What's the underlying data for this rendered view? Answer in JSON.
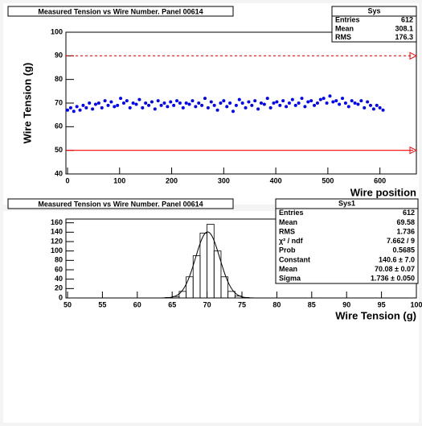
{
  "chart_data": [
    {
      "type": "scatter",
      "title": "Measured Tension vs Wire Number. Panel 00614",
      "x_label": "Wire position",
      "y_label": "Wire Tension (g)",
      "color": "#0000ff",
      "xlim": [
        0,
        670
      ],
      "ylim": [
        40,
        100
      ],
      "xticks": [
        0,
        100,
        200,
        300,
        400,
        500,
        600
      ],
      "yticks": [
        40,
        50,
        60,
        70,
        80,
        90,
        100
      ],
      "reference_lines": [
        {
          "value": 90,
          "style": "dashed",
          "color": "#ff0000"
        },
        {
          "value": 50,
          "style": "solid",
          "color": "#ff0000"
        }
      ],
      "stats": {
        "name": "Sys",
        "rows": [
          [
            "Entries",
            "612"
          ],
          [
            "Mean",
            "308.1"
          ],
          [
            "RMS",
            "176.3"
          ]
        ]
      },
      "x": [
        0,
        6,
        12,
        18,
        24,
        30,
        36,
        42,
        48,
        54,
        60,
        66,
        72,
        78,
        84,
        90,
        96,
        102,
        108,
        114,
        120,
        126,
        132,
        138,
        144,
        150,
        156,
        162,
        168,
        174,
        180,
        186,
        192,
        198,
        204,
        210,
        216,
        222,
        228,
        234,
        240,
        246,
        252,
        258,
        264,
        270,
        276,
        282,
        288,
        294,
        300,
        306,
        312,
        318,
        324,
        330,
        336,
        342,
        348,
        354,
        360,
        366,
        372,
        378,
        384,
        390,
        396,
        402,
        408,
        414,
        420,
        426,
        432,
        438,
        444,
        450,
        456,
        462,
        468,
        474,
        480,
        486,
        492,
        498,
        504,
        510,
        516,
        522,
        528,
        534,
        540,
        546,
        552,
        558,
        564,
        570,
        576,
        582,
        588,
        594,
        600,
        606
      ],
      "y": [
        67,
        68,
        66.5,
        68.5,
        67,
        69,
        68,
        70,
        67.5,
        69.5,
        70,
        68,
        71,
        69,
        70.5,
        68.5,
        69,
        72,
        70,
        71,
        68,
        70,
        69.5,
        71.5,
        68,
        70,
        69,
        70.5,
        67.5,
        71,
        69,
        70,
        68.5,
        70.5,
        69,
        71,
        70,
        68,
        70,
        69.5,
        71,
        68.5,
        70,
        69,
        72,
        68,
        70.5,
        69,
        67,
        70,
        71,
        68.5,
        70,
        66.5,
        69,
        71.5,
        70,
        68,
        70.5,
        69,
        71,
        67.5,
        70,
        69.5,
        72,
        68,
        70,
        70.5,
        69,
        71,
        68.5,
        70,
        71.5,
        69,
        70,
        72,
        68.5,
        70.5,
        71,
        69,
        70,
        71.5,
        72,
        70,
        73,
        70.5,
        71,
        69.5,
        72,
        70,
        68.5,
        71,
        70,
        69.5,
        71,
        68,
        70.5,
        69,
        67.5,
        69,
        68,
        67
      ]
    },
    {
      "type": "histogram",
      "title": "Measured Tension vs Wire Number. Panel 00614",
      "x_label": "Wire Tension (g)",
      "color": "#000000",
      "xlim": [
        50,
        100
      ],
      "ylim": [
        0,
        168
      ],
      "xticks": [
        50,
        55,
        60,
        65,
        70,
        75,
        80,
        85,
        90,
        95,
        100
      ],
      "yticks": [
        0,
        20,
        40,
        60,
        80,
        100,
        120,
        140,
        160
      ],
      "bins": [
        64,
        65,
        66,
        67,
        68,
        69,
        70,
        71,
        72,
        73,
        74,
        75,
        76
      ],
      "counts": [
        1,
        3,
        14,
        45,
        90,
        138,
        157,
        100,
        45,
        14,
        4,
        1
      ],
      "fit": {
        "constant": 140.6,
        "mean": 70.08,
        "sigma": 1.736
      },
      "stats": {
        "name": "Sys1",
        "rows": [
          [
            "Entries",
            "612"
          ],
          [
            "Mean",
            "69.58"
          ],
          [
            "RMS",
            "1.736"
          ],
          [
            "χ² / ndf",
            "7.662 / 9"
          ],
          [
            "Prob",
            "0.5685"
          ],
          [
            "Constant",
            "140.6 ± 7.0"
          ],
          [
            "Mean",
            "70.08 ± 0.07"
          ],
          [
            "Sigma",
            "1.736 ± 0.050"
          ]
        ]
      }
    }
  ]
}
